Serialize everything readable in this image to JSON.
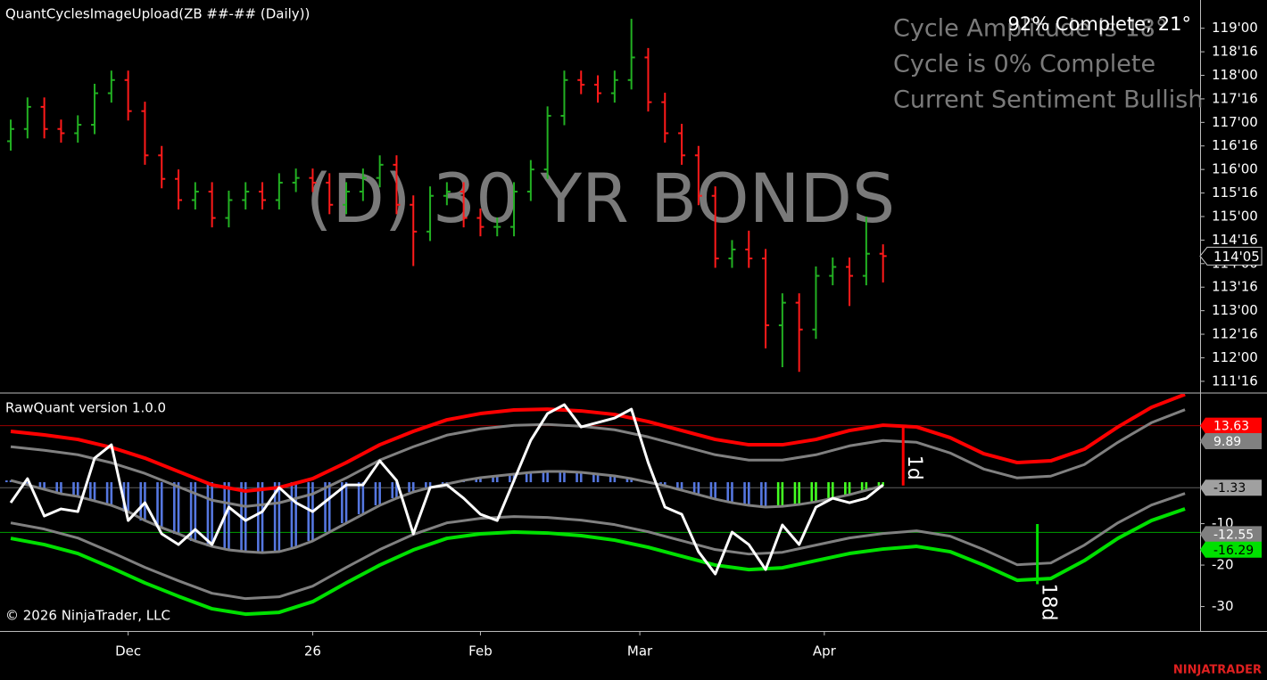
{
  "brand": "NINJATRADER",
  "chart_data": [
    {
      "type": "ohlc",
      "title": "QuantCyclesImageUpload(ZB ##-## (Daily))",
      "watermark": "(D) 30 YR BONDS",
      "status": "92% Complete; 21°",
      "info_lines": [
        "Cycle Amplitude is 18°",
        "Cycle is 0% Complete",
        "Current Sentiment Bullish"
      ],
      "up_color": "#22b022",
      "down_color": "#ff1a1a",
      "xlim": [
        -1.28,
        141.8
      ],
      "xticks": [
        {
          "value": 14,
          "label": "Dec"
        },
        {
          "value": 36,
          "label": "26"
        },
        {
          "value": 56,
          "label": "Feb"
        },
        {
          "value": 75,
          "label": "Mar"
        },
        {
          "value": 97,
          "label": "Apr"
        }
      ],
      "ylim": [
        111.27,
        119.6
      ],
      "yticks": [
        {
          "value": 119,
          "label": "119'00"
        },
        {
          "value": 118.5,
          "label": "118'16"
        },
        {
          "value": 118,
          "label": "118'00"
        },
        {
          "value": 117.5,
          "label": "117'16"
        },
        {
          "value": 117,
          "label": "117'00"
        },
        {
          "value": 116.5,
          "label": "116'16"
        },
        {
          "value": 116,
          "label": "116'00"
        },
        {
          "value": 115.5,
          "label": "115'16"
        },
        {
          "value": 115,
          "label": "115'00"
        },
        {
          "value": 114.5,
          "label": "114'16"
        },
        {
          "value": 114,
          "label": "114'00"
        },
        {
          "value": 113.5,
          "label": "113'16"
        },
        {
          "value": 113,
          "label": "113'00"
        },
        {
          "value": 112.5,
          "label": "112'16"
        },
        {
          "value": 112,
          "label": "112'00"
        },
        {
          "value": 111.5,
          "label": "111'16"
        }
      ],
      "last_price": {
        "value": 114.16,
        "label": "114'05"
      },
      "x": [
        0,
        2,
        4,
        6,
        8,
        10,
        12,
        14,
        16,
        18,
        20,
        22,
        24,
        26,
        28,
        30,
        32,
        34,
        36,
        38,
        40,
        42,
        44,
        46,
        48,
        50,
        52,
        54,
        56,
        58,
        60,
        62,
        64,
        66,
        68,
        70,
        72,
        74,
        76,
        78,
        80,
        82,
        84,
        86,
        88,
        90,
        92,
        94,
        96,
        98,
        100,
        102,
        104
      ],
      "open": [
        116.6,
        116.86,
        117.33,
        116.86,
        116.77,
        116.95,
        117.62,
        117.9,
        117.24,
        116.3,
        115.8,
        115.35,
        115.53,
        114.97,
        115.35,
        115.53,
        115.35,
        115.72,
        115.82,
        115.72,
        115.25,
        115.53,
        115.82,
        116.1,
        115.25,
        114.68,
        115.44,
        115.53,
        114.97,
        114.78,
        114.78,
        115.53,
        116.0,
        117.14,
        117.9,
        117.8,
        117.62,
        117.9,
        118.38,
        117.43,
        116.77,
        116.3,
        115.44,
        114.11,
        114.3,
        114.11,
        112.69,
        113.17,
        112.6,
        113.74,
        113.93,
        113.74,
        114.21
      ],
      "high": [
        117.06,
        117.53,
        117.53,
        117.06,
        117.15,
        117.82,
        118.1,
        118.1,
        117.44,
        116.5,
        116.0,
        115.73,
        115.73,
        115.55,
        115.73,
        115.73,
        115.92,
        116.02,
        116.02,
        115.92,
        115.73,
        116.02,
        116.3,
        116.3,
        115.45,
        115.64,
        115.73,
        115.73,
        115.17,
        114.98,
        115.73,
        116.2,
        117.34,
        118.1,
        118.1,
        118.0,
        118.1,
        119.2,
        118.58,
        117.63,
        116.97,
        116.5,
        115.64,
        114.5,
        114.7,
        114.31,
        113.37,
        113.37,
        113.94,
        114.13,
        114.13,
        115.0,
        114.41
      ],
      "low": [
        116.4,
        116.66,
        116.66,
        116.57,
        116.57,
        116.75,
        117.42,
        117.04,
        116.1,
        115.6,
        115.15,
        115.15,
        114.77,
        114.77,
        115.15,
        115.15,
        115.15,
        115.52,
        115.52,
        115.05,
        115.05,
        115.33,
        115.62,
        115.05,
        113.95,
        114.48,
        115.24,
        114.77,
        114.58,
        114.58,
        114.58,
        115.33,
        115.8,
        116.94,
        117.6,
        117.42,
        117.42,
        117.7,
        117.23,
        116.57,
        116.1,
        115.24,
        113.91,
        113.91,
        113.91,
        112.2,
        111.8,
        111.7,
        112.4,
        113.54,
        113.1,
        113.54,
        113.6
      ],
      "close": [
        116.86,
        117.33,
        116.86,
        116.77,
        116.95,
        117.62,
        117.9,
        117.24,
        116.3,
        115.8,
        115.35,
        115.53,
        114.97,
        115.35,
        115.53,
        115.35,
        115.72,
        115.82,
        115.72,
        115.25,
        115.53,
        115.82,
        116.1,
        115.25,
        114.68,
        115.44,
        115.53,
        114.97,
        114.78,
        114.78,
        115.53,
        116.0,
        117.14,
        117.9,
        117.8,
        117.62,
        117.9,
        118.38,
        117.43,
        116.77,
        116.3,
        115.44,
        114.11,
        114.3,
        114.11,
        112.69,
        113.17,
        112.6,
        113.74,
        113.93,
        113.74,
        114.21,
        114.16
      ]
    },
    {
      "type": "indicator",
      "title": "RawQuant version 1.0.0",
      "copyright": "© 2026 NinjaTrader, LLC",
      "xlim": [
        -1.28,
        141.8
      ],
      "ylim": [
        -35.9,
        21.3
      ],
      "yticks": [
        -10,
        -20,
        -30
      ],
      "series": [
        {
          "color": "#ff0000",
          "width": 4,
          "x": [
            0,
            4,
            8,
            12,
            16,
            20,
            24,
            28,
            32,
            36,
            40,
            44,
            48,
            52,
            56,
            60,
            64,
            68,
            72,
            76,
            80,
            84,
            88,
            92,
            96,
            100,
            104,
            108,
            112,
            116,
            120,
            124,
            128,
            132,
            136,
            140
          ],
          "values": [
            12.26,
            11.4,
            10.32,
            8.39,
            5.81,
            2.58,
            -0.65,
            -2.15,
            -1.29,
            0.86,
            4.73,
            9.03,
            12.26,
            15.05,
            16.56,
            17.42,
            17.63,
            17.2,
            16.34,
            14.62,
            12.47,
            10.32,
            9.03,
            9.03,
            10.32,
            12.47,
            13.76,
            13.33,
            10.75,
            6.88,
            4.73,
            5.16,
            7.96,
            13.33,
            18.06,
            21.2
          ]
        },
        {
          "color": "#808080",
          "width": 3,
          "x": [
            0,
            4,
            8,
            12,
            16,
            20,
            24,
            28,
            32,
            36,
            40,
            44,
            48,
            52,
            56,
            60,
            64,
            68,
            72,
            76,
            80,
            84,
            88,
            92,
            96,
            100,
            104,
            108,
            112,
            116,
            120,
            124,
            128,
            132,
            136,
            140
          ],
          "values": [
            8.56,
            7.7,
            6.62,
            4.69,
            2.11,
            -1.12,
            -4.35,
            -5.85,
            -4.99,
            -2.84,
            1.03,
            5.33,
            8.56,
            11.35,
            12.86,
            13.72,
            13.93,
            13.5,
            12.64,
            10.92,
            8.77,
            6.62,
            5.33,
            5.33,
            6.62,
            8.77,
            10.06,
            9.63,
            7.05,
            3.18,
            1.03,
            1.46,
            4.26,
            9.63,
            14.36,
            17.5
          ]
        },
        {
          "color": "#808080",
          "width": 3,
          "x": [
            0,
            4,
            8,
            12,
            16,
            20,
            24,
            28,
            32,
            36,
            40,
            44,
            48,
            52,
            56,
            60,
            64,
            68,
            72,
            76,
            80,
            84,
            88,
            92,
            96,
            100,
            104,
            108,
            112,
            116,
            120,
            124,
            128,
            132,
            136,
            140
          ],
          "values": [
            -9.81,
            -11.31,
            -13.46,
            -16.91,
            -20.56,
            -23.79,
            -26.8,
            -28.09,
            -27.66,
            -25.08,
            -20.56,
            -16.26,
            -12.6,
            -9.81,
            -8.73,
            -8.3,
            -8.52,
            -9.16,
            -10.24,
            -11.96,
            -14.11,
            -16.26,
            -17.34,
            -16.91,
            -15.18,
            -13.46,
            -12.39,
            -11.74,
            -13.03,
            -16.26,
            -19.92,
            -19.49,
            -15.18,
            -9.81,
            -5.51,
            -2.71
          ]
        },
        {
          "color": "#00e000",
          "width": 4,
          "x": [
            0,
            4,
            8,
            12,
            16,
            20,
            24,
            28,
            32,
            36,
            40,
            44,
            48,
            52,
            56,
            60,
            64,
            68,
            72,
            76,
            80,
            84,
            88,
            92,
            96,
            100,
            104,
            108,
            112,
            116,
            120,
            124,
            128,
            132,
            136,
            140
          ],
          "values": [
            -13.55,
            -15.05,
            -17.2,
            -20.65,
            -24.3,
            -27.53,
            -30.54,
            -31.83,
            -31.4,
            -28.82,
            -24.3,
            -20.0,
            -16.34,
            -13.55,
            -12.47,
            -12.04,
            -12.26,
            -12.9,
            -13.98,
            -15.7,
            -17.85,
            -20.0,
            -21.08,
            -20.65,
            -18.92,
            -17.2,
            -16.13,
            -15.48,
            -16.77,
            -20.0,
            -23.66,
            -23.23,
            -18.92,
            -13.55,
            -9.25,
            -6.45
          ]
        },
        {
          "color": "#ffffff",
          "width": 3,
          "x": [
            0,
            2,
            4,
            6,
            8,
            10,
            12,
            14,
            16,
            18,
            20,
            22,
            24,
            26,
            28,
            30,
            32,
            34,
            36,
            38,
            40,
            42,
            44,
            46,
            48,
            50,
            52,
            54,
            56,
            58,
            60,
            62,
            64,
            66,
            68,
            70,
            72,
            74,
            76,
            78,
            80,
            82,
            84,
            86,
            88,
            90,
            92,
            94,
            96,
            98,
            100,
            102,
            104
          ],
          "values": [
            -4.95,
            0.86,
            -8.17,
            -6.45,
            -7.1,
            5.81,
            9.03,
            -9.25,
            -4.95,
            -12.47,
            -15.05,
            -11.4,
            -15.05,
            -6.02,
            -9.25,
            -7.1,
            -1.29,
            -4.95,
            -7.1,
            -3.87,
            -0.65,
            -0.65,
            5.16,
            0.43,
            -12.47,
            -1.29,
            -0.65,
            -3.87,
            -7.74,
            -9.25,
            0.43,
            10.11,
            16.56,
            18.71,
            13.33,
            14.41,
            15.48,
            17.63,
            4.73,
            -6.02,
            -7.74,
            -16.77,
            -22.15,
            -12.04,
            -15.05,
            -21.08,
            -10.32,
            -15.05,
            -6.02,
            -3.87,
            -4.95,
            -3.87,
            -0.65
          ]
        }
      ],
      "histogram": {
        "line_color": "#808080",
        "x": [
          0,
          2,
          4,
          6,
          8,
          10,
          12,
          14,
          16,
          18,
          20,
          22,
          24,
          26,
          28,
          30,
          32,
          34,
          36,
          38,
          40,
          42,
          44,
          46,
          48,
          50,
          52,
          54,
          56,
          58,
          60,
          62,
          64,
          66,
          68,
          70,
          72,
          74,
          76,
          78,
          80,
          82,
          84,
          86,
          88,
          90,
          92,
          94,
          96,
          98,
          100,
          102,
          104
        ],
        "values": [
          0.43,
          -0.65,
          -1.72,
          -2.8,
          -3.44,
          -4.52,
          -5.59,
          -7.1,
          -9.25,
          -10.97,
          -12.47,
          -14.19,
          -15.48,
          -16.34,
          -16.77,
          -16.99,
          -16.77,
          -15.7,
          -14.19,
          -12.04,
          -9.89,
          -7.74,
          -5.59,
          -3.87,
          -2.37,
          -1.29,
          -0.43,
          0.43,
          1.08,
          1.51,
          1.94,
          2.37,
          2.58,
          2.58,
          2.37,
          1.94,
          1.51,
          0.86,
          0,
          -0.86,
          -1.94,
          -3.01,
          -4.09,
          -4.95,
          -5.59,
          -6.02,
          -5.81,
          -5.38,
          -4.73,
          -3.87,
          -3.01,
          -1.94,
          -0.86
        ],
        "colors": [
          "#5577e0",
          "#5577e0",
          "#5577e0",
          "#5577e0",
          "#5577e0",
          "#5577e0",
          "#5577e0",
          "#5577e0",
          "#5577e0",
          "#5577e0",
          "#5577e0",
          "#5577e0",
          "#5577e0",
          "#5577e0",
          "#5577e0",
          "#5577e0",
          "#5577e0",
          "#5577e0",
          "#5577e0",
          "#5577e0",
          "#5577e0",
          "#5577e0",
          "#5577e0",
          "#5577e0",
          "#5577e0",
          "#5577e0",
          "#5577e0",
          "#5577e0",
          "#5577e0",
          "#5577e0",
          "#5577e0",
          "#5577e0",
          "#5577e0",
          "#5577e0",
          "#5577e0",
          "#5577e0",
          "#5577e0",
          "#5577e0",
          "#5577e0",
          "#5577e0",
          "#5577e0",
          "#5577e0",
          "#5577e0",
          "#5577e0",
          "#5577e0",
          "#5577e0",
          "#44ff22",
          "#44ff22",
          "#44ff22",
          "#44ff22",
          "#44ff22",
          "#44ff22",
          "#44ff22"
        ]
      },
      "markers": [
        {
          "value": 13.63,
          "color": "#ff0000",
          "text_color": "#ffffff",
          "line": true
        },
        {
          "value": 9.89,
          "color": "#808080",
          "text_color": "#ffffff",
          "line": false
        },
        {
          "value": -1.33,
          "color": "#a0a0a0",
          "text_color": "#000000",
          "line": true
        },
        {
          "value": -12.55,
          "color": "#808080",
          "text_color": "#ffffff",
          "line": false
        },
        {
          "value": -16.29,
          "color": "#00e000",
          "text_color": "#000000",
          "line": false
        }
      ],
      "green_line": -12.1,
      "annotations": [
        {
          "text": "1d",
          "x": 106.4,
          "from": 13.3,
          "to": -0.8,
          "color": "#ff0000"
        },
        {
          "text": "18d",
          "x": 122.4,
          "from": -10.1,
          "to": -24.6,
          "color": "#00e000"
        }
      ]
    }
  ]
}
